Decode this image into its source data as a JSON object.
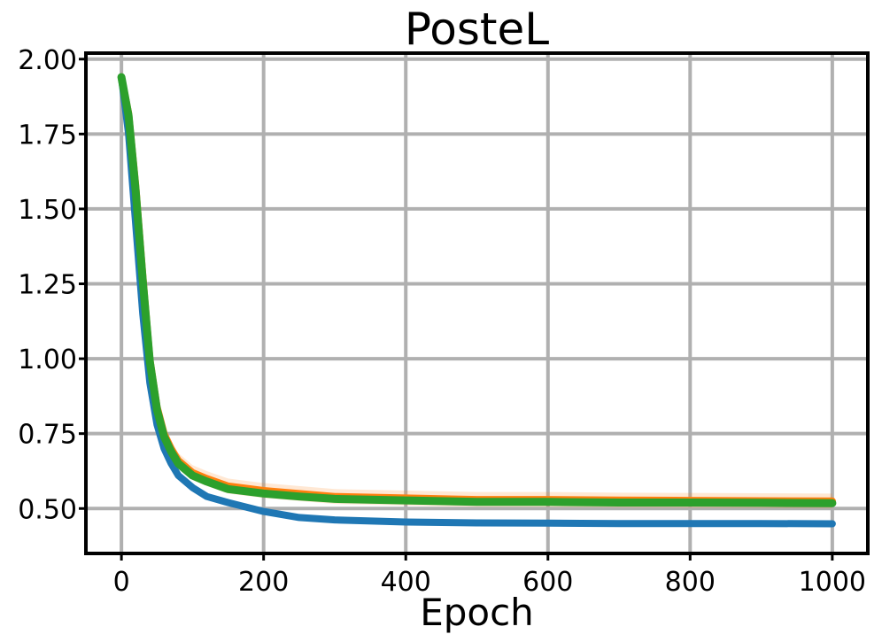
{
  "chart_data": {
    "type": "line",
    "title": "PosteL",
    "xlabel": "Epoch",
    "ylabel": "",
    "xlim": [
      -50,
      1050
    ],
    "ylim": [
      0.35,
      2.02
    ],
    "x_ticks": [
      0,
      200,
      400,
      600,
      800,
      1000
    ],
    "x_tick_labels": [
      "0",
      "200",
      "400",
      "600",
      "800",
      "1000"
    ],
    "y_ticks": [
      0.5,
      0.75,
      1.0,
      1.25,
      1.5,
      1.75,
      2.0
    ],
    "y_tick_labels": [
      "0.50",
      "0.75",
      "1.00",
      "1.25",
      "1.50",
      "1.75",
      "2.00"
    ],
    "grid": true,
    "legend": "none",
    "series": [
      {
        "color": "#1f77b4",
        "x": [
          0,
          10,
          20,
          30,
          40,
          50,
          60,
          70,
          80,
          100,
          120,
          150,
          200,
          250,
          300,
          400,
          500,
          600,
          700,
          800,
          900,
          1000
        ],
        "y": [
          1.94,
          1.75,
          1.45,
          1.15,
          0.92,
          0.78,
          0.7,
          0.65,
          0.61,
          0.57,
          0.54,
          0.52,
          0.49,
          0.47,
          0.462,
          0.455,
          0.452,
          0.451,
          0.45,
          0.45,
          0.45,
          0.449
        ]
      },
      {
        "color": "#ff7f0e",
        "band": 0.025,
        "x": [
          0,
          10,
          20,
          30,
          40,
          50,
          60,
          70,
          80,
          100,
          120,
          150,
          200,
          250,
          300,
          400,
          500,
          600,
          700,
          800,
          900,
          1000
        ],
        "y": [
          1.94,
          1.82,
          1.58,
          1.28,
          1.0,
          0.84,
          0.75,
          0.7,
          0.66,
          0.62,
          0.6,
          0.575,
          0.56,
          0.55,
          0.54,
          0.535,
          0.53,
          0.53,
          0.528,
          0.527,
          0.526,
          0.525
        ]
      },
      {
        "color": "#2ca02c",
        "x": [
          0,
          10,
          20,
          30,
          40,
          50,
          60,
          70,
          80,
          100,
          120,
          150,
          200,
          250,
          300,
          400,
          500,
          600,
          700,
          800,
          900,
          1000
        ],
        "y": [
          1.94,
          1.81,
          1.56,
          1.26,
          0.99,
          0.83,
          0.74,
          0.69,
          0.65,
          0.61,
          0.59,
          0.565,
          0.55,
          0.54,
          0.532,
          0.527,
          0.522,
          0.522,
          0.52,
          0.52,
          0.519,
          0.518
        ]
      }
    ]
  }
}
